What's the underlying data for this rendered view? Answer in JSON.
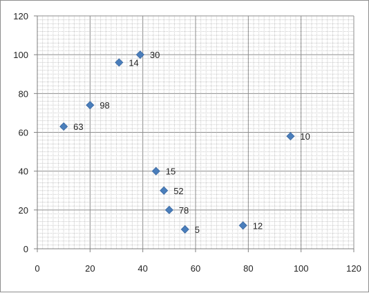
{
  "chart_data": {
    "type": "scatter",
    "title": "",
    "xlabel": "",
    "ylabel": "",
    "xlim": [
      0,
      120
    ],
    "ylim": [
      0,
      120
    ],
    "x_ticks": [
      0,
      20,
      40,
      60,
      80,
      100,
      120
    ],
    "y_ticks": [
      0,
      20,
      40,
      60,
      80,
      100,
      120
    ],
    "x_tick_labels": [
      "0",
      "20",
      "40",
      "60",
      "80",
      "100",
      "120"
    ],
    "y_tick_labels": [
      "0",
      "20",
      "40",
      "60",
      "80",
      "100",
      "120"
    ],
    "grid": true,
    "minor_grid": true,
    "marker": "diamond",
    "series": [
      {
        "points": [
          {
            "x": 31,
            "y": 96,
            "label": "14"
          },
          {
            "x": 39,
            "y": 100,
            "label": "30"
          },
          {
            "x": 20,
            "y": 74,
            "label": "98"
          },
          {
            "x": 10,
            "y": 63,
            "label": "63"
          },
          {
            "x": 96,
            "y": 58,
            "label": "10"
          },
          {
            "x": 45,
            "y": 40,
            "label": "15"
          },
          {
            "x": 48,
            "y": 30,
            "label": "52"
          },
          {
            "x": 50,
            "y": 20,
            "label": "78"
          },
          {
            "x": 56,
            "y": 10,
            "label": "5"
          },
          {
            "x": 78,
            "y": 12,
            "label": "12"
          }
        ]
      }
    ],
    "colors": {
      "marker": "#4a7ebb",
      "marker_stroke": "#3a67a0",
      "major_grid": "#8c8c8c",
      "minor_grid": "#c8c8c8",
      "axis": "#7f7f7f"
    }
  }
}
